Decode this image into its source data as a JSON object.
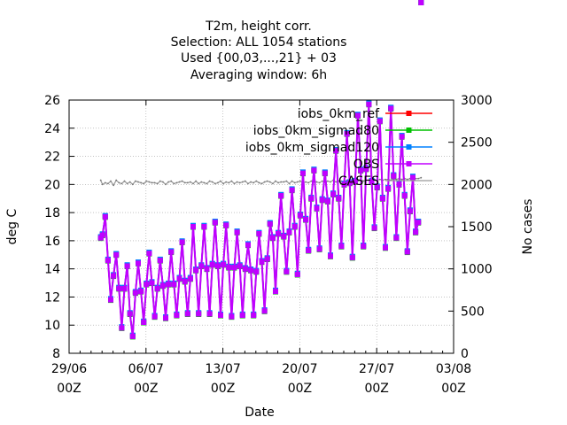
{
  "chart_data": {
    "type": "line",
    "title_lines": [
      "T2m, height corr.",
      "Selection: ALL    1054 stations",
      "Used {00,03,...,21} + 03",
      "Averaging window:  6h"
    ],
    "xlabel": "Date",
    "ylabel": "deg C",
    "y2label": "No cases",
    "ylim": [
      8,
      26
    ],
    "yticks": [
      "8",
      "10",
      "12",
      "14",
      "16",
      "18",
      "20",
      "22",
      "24",
      "26"
    ],
    "y2lim": [
      0,
      3000
    ],
    "y2ticks": [
      "0",
      "500",
      "1000",
      "1500",
      "2000",
      "2500",
      "3000"
    ],
    "xlim": [
      0,
      35
    ],
    "xticks": [
      {
        "day": 0,
        "line1": "29/06",
        "line2": "00Z"
      },
      {
        "day": 7,
        "line1": "06/07",
        "line2": "00Z"
      },
      {
        "day": 14,
        "line1": "13/07",
        "line2": "00Z"
      },
      {
        "day": 21,
        "line1": "20/07",
        "line2": "00Z"
      },
      {
        "day": 28,
        "line1": "27/07",
        "line2": "00Z"
      },
      {
        "day": 35,
        "line1": "03/08",
        "line2": "00Z"
      }
    ],
    "grid": true,
    "legend_position": "top-right",
    "series_colors": [
      "#ff0000",
      "#00c000",
      "#0080ff",
      "#c000ff"
    ],
    "series": [
      {
        "name": "iobs_0km_ref",
        "color": "#ff0000"
      },
      {
        "name": "iobs_0km_sigmad80",
        "color": "#00c000"
      },
      {
        "name": "iobs_0km_sigmad120",
        "color": "#0080ff"
      },
      {
        "name": "OBS",
        "color": "#c000ff"
      }
    ],
    "cases_series": {
      "name": "CASES",
      "color": "#999999"
    },
    "x_days": [
      2.88,
      3.04,
      3.29,
      3.54,
      3.79,
      4.04,
      4.29,
      4.54,
      4.79,
      5.04,
      5.29,
      5.54,
      5.79,
      6.04,
      6.29,
      6.54,
      6.79,
      7.04,
      7.29,
      7.54,
      7.79,
      8.04,
      8.29,
      8.54,
      8.79,
      9.04,
      9.29,
      9.54,
      9.79,
      10.04,
      10.29,
      10.54,
      10.79,
      11.04,
      11.29,
      11.54,
      11.79,
      12.04,
      12.29,
      12.54,
      12.79,
      13.04,
      13.29,
      13.54,
      13.79,
      14.04,
      14.29,
      14.54,
      14.79,
      15.04,
      15.29,
      15.54,
      15.79,
      16.04,
      16.29,
      16.54,
      16.79,
      17.04,
      17.29,
      17.54,
      17.79,
      18.04,
      18.29,
      18.54,
      18.79,
      19.04,
      19.29,
      19.54,
      19.79,
      20.04,
      20.29,
      20.54,
      20.79,
      21.04,
      21.29,
      21.54,
      21.79,
      22.04,
      22.29,
      22.54,
      22.79,
      23.04,
      23.29,
      23.54,
      23.79,
      24.04,
      24.29,
      24.54,
      24.79,
      25.04,
      25.29,
      25.54,
      25.79,
      26.04,
      26.29,
      26.54,
      26.79,
      27.04,
      27.29,
      27.54,
      27.79,
      28.04,
      28.29,
      28.54,
      28.79,
      29.04,
      29.29,
      29.54,
      29.79,
      30.04,
      30.29,
      30.54,
      30.79,
      31.04,
      31.29,
      31.54,
      31.79,
      32.04
    ],
    "temp_values": [
      16.2,
      16.4,
      17.7,
      14.6,
      11.8,
      13.5,
      15.0,
      12.6,
      9.8,
      12.6,
      14.2,
      10.8,
      9.2,
      12.3,
      14.4,
      12.4,
      10.2,
      12.9,
      15.1,
      13.0,
      10.6,
      12.6,
      14.6,
      12.8,
      10.5,
      12.9,
      15.2,
      12.9,
      10.7,
      13.3,
      15.9,
      13.1,
      10.8,
      13.3,
      17.0,
      13.9,
      10.8,
      14.2,
      17.0,
      14.0,
      10.8,
      14.3,
      17.3,
      14.2,
      10.7,
      14.3,
      17.1,
      14.1,
      10.6,
      14.1,
      16.6,
      14.2,
      10.7,
      14.0,
      15.7,
      13.9,
      10.7,
      13.8,
      16.5,
      14.5,
      11.0,
      14.7,
      17.2,
      16.2,
      12.4,
      16.5,
      19.2,
      16.3,
      13.8,
      16.6,
      19.6,
      17.0,
      13.6,
      17.8,
      20.8,
      17.5,
      15.3,
      19.0,
      21.0,
      18.3,
      15.4,
      18.9,
      20.8,
      18.8,
      14.9,
      19.3,
      22.4,
      19.0,
      15.6,
      20.0,
      23.6,
      20.1,
      14.8,
      20.2,
      24.9,
      21.0,
      15.6,
      21.1,
      25.7,
      20.2,
      16.9,
      19.8,
      24.5,
      19.0,
      15.5,
      19.7,
      25.4,
      20.6,
      16.2,
      20.0,
      23.4,
      19.2,
      15.2,
      18.1,
      20.5,
      16.6,
      17.3
    ],
    "cases_values": [
      2050,
      2000,
      2020,
      2010,
      2040,
      1990,
      2050,
      2020,
      2010,
      2040,
      2010,
      2030,
      2000,
      2040,
      2030,
      2020,
      2010,
      2040,
      2030,
      2020,
      2020,
      2010,
      2040,
      2030,
      2000,
      2030,
      2040,
      2010,
      2020,
      2030,
      2040,
      2020,
      2020,
      2030,
      2010,
      2040,
      2010,
      2030,
      2020,
      2010,
      2040,
      2030,
      2010,
      2020,
      2040,
      2010,
      2030,
      2020,
      2040,
      2010,
      2030,
      2020,
      2030,
      2040,
      2010,
      2030,
      2020,
      2040,
      2020,
      2010,
      2030,
      2040,
      2030,
      2010,
      2040,
      2020,
      2030,
      2030,
      2040,
      2010,
      2040,
      2020,
      2030,
      2040,
      2020,
      2030,
      2020,
      2040,
      2030,
      2030,
      2020,
      2040,
      2030,
      2040,
      2030,
      2050,
      2030,
      2040,
      2040,
      2030,
      2050,
      2030,
      2050,
      2040,
      2040,
      2060,
      2040,
      2050,
      2050,
      2050,
      2060,
      2050,
      2060,
      2050,
      2060,
      2060,
      2050,
      2070,
      2060,
      2070,
      2060,
      2070,
      2060,
      2070,
      2080,
      2070,
      2070,
      2080
    ]
  }
}
